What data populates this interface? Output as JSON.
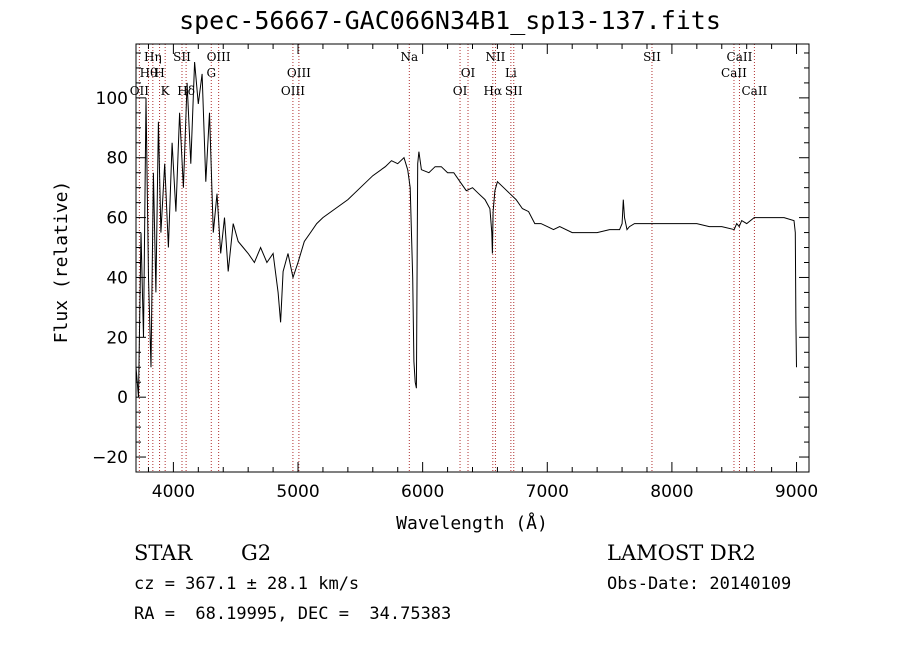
{
  "title": "spec-56667-GAC066N34B1_sp13-137.fits",
  "chart_data": {
    "type": "line",
    "xlabel": "Wavelength (Å)",
    "ylabel": "Flux (relative)",
    "xlim": [
      3700,
      9100
    ],
    "ylim": [
      -25,
      118
    ],
    "xticks": [
      4000,
      5000,
      6000,
      7000,
      8000,
      9000
    ],
    "yticks": [
      -20,
      0,
      20,
      40,
      60,
      80,
      100
    ],
    "series": [
      {
        "x": [
          3700,
          3720,
          3740,
          3760,
          3780,
          3800,
          3820,
          3840,
          3860,
          3880,
          3900,
          3930,
          3960,
          3990,
          4020,
          4050,
          4080,
          4110,
          4140,
          4170,
          4200,
          4230,
          4260,
          4290,
          4320,
          4350,
          4380,
          4410,
          4440,
          4480,
          4520,
          4560,
          4600,
          4650,
          4700,
          4750,
          4800,
          4840,
          4860,
          4880,
          4920,
          4960,
          5000,
          5050,
          5100,
          5150,
          5200,
          5300,
          5400,
          5500,
          5600,
          5700,
          5750,
          5800,
          5850,
          5880,
          5900,
          5920,
          5930,
          5940,
          5950,
          5960,
          5970,
          5990,
          6050,
          6100,
          6150,
          6200,
          6250,
          6300,
          6350,
          6400,
          6450,
          6500,
          6540,
          6555,
          6560,
          6565,
          6580,
          6600,
          6650,
          6700,
          6750,
          6800,
          6850,
          6900,
          6950,
          7000,
          7050,
          7100,
          7200,
          7300,
          7400,
          7500,
          7580,
          7600,
          7610,
          7620,
          7640,
          7660,
          7700,
          7800,
          7900,
          8000,
          8100,
          8200,
          8300,
          8400,
          8500,
          8520,
          8540,
          8560,
          8600,
          8660,
          8700,
          8800,
          8900,
          8980,
          8990,
          8995,
          9000
        ],
        "y": [
          10,
          0,
          55,
          20,
          100,
          40,
          10,
          75,
          35,
          92,
          55,
          78,
          50,
          85,
          62,
          95,
          70,
          105,
          78,
          112,
          98,
          108,
          72,
          95,
          55,
          68,
          48,
          60,
          42,
          58,
          52,
          50,
          48,
          45,
          50,
          45,
          48,
          35,
          25,
          42,
          48,
          40,
          45,
          52,
          55,
          58,
          60,
          63,
          66,
          70,
          74,
          77,
          79,
          78,
          80,
          76,
          70,
          40,
          12,
          5,
          3,
          78,
          82,
          76,
          75,
          77,
          77,
          75,
          75,
          72,
          69,
          70,
          68,
          66,
          63,
          55,
          48,
          62,
          69,
          72,
          70,
          68,
          66,
          63,
          62,
          58,
          58,
          57,
          56,
          57,
          55,
          55,
          55,
          56,
          56,
          58,
          66,
          60,
          56,
          57,
          58,
          58,
          58,
          58,
          58,
          58,
          57,
          57,
          56,
          58,
          57,
          59,
          58,
          60,
          60,
          60,
          60,
          59,
          55,
          25,
          10
        ]
      }
    ],
    "line_labels": [
      {
        "name": "Hη",
        "x": 3835,
        "row": 1
      },
      {
        "name": "Hθ",
        "x": 3800,
        "row": 2
      },
      {
        "name": "OII",
        "x": 3727,
        "row": 3
      },
      {
        "name": "H",
        "x": 3889,
        "row": 2
      },
      {
        "name": "K",
        "x": 3934,
        "row": 3
      },
      {
        "name": "SII",
        "x": 4069,
        "row": 1
      },
      {
        "name": "Hδ",
        "x": 4102,
        "row": 3
      },
      {
        "name": "OIII",
        "x": 4363,
        "row": 1
      },
      {
        "name": "G",
        "x": 4304,
        "row": 2
      },
      {
        "name": "OIII",
        "x": 5007,
        "row": 2
      },
      {
        "name": "OIII",
        "x": 4959,
        "row": 3
      },
      {
        "name": "Na",
        "x": 5893,
        "row": 1
      },
      {
        "name": "OI",
        "x": 6364,
        "row": 2
      },
      {
        "name": "OI",
        "x": 6300,
        "row": 3
      },
      {
        "name": "NII",
        "x": 6584,
        "row": 1
      },
      {
        "name": "Li",
        "x": 6708,
        "row": 2
      },
      {
        "name": "Hα",
        "x": 6563,
        "row": 3
      },
      {
        "name": "SII",
        "x": 6731,
        "row": 3
      },
      {
        "name": "SII",
        "x": 7840,
        "row": 1
      },
      {
        "name": "CaII",
        "x": 8542,
        "row": 1
      },
      {
        "name": "CaII",
        "x": 8498,
        "row": 2
      },
      {
        "name": "CaII",
        "x": 8662,
        "row": 3
      }
    ]
  },
  "info": {
    "obj_class": "STAR",
    "subclass": "G2",
    "survey": "LAMOST DR2",
    "cz": "cz = 367.1 ± 28.1 km/s",
    "obs_date": "Obs-Date: 20140109",
    "coords": "RA =  68.19995, DEC =  34.75383"
  }
}
